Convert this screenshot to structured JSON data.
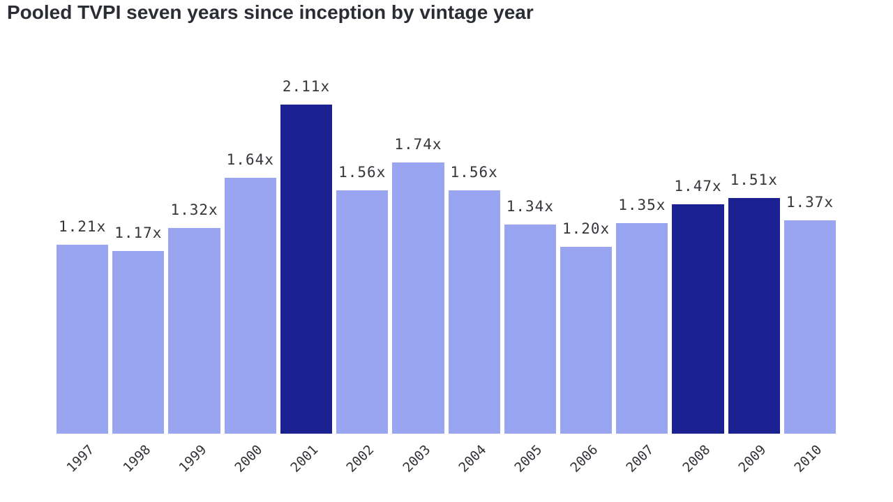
{
  "title": "Pooled TVPI seven years since inception by vintage year",
  "colors": {
    "background": "#ffffff",
    "bar": "#99a5f0",
    "bar_highlight": "#1c2192",
    "title_text": "#2a2d34",
    "label_text": "#33363b",
    "tick_text": "#303338"
  },
  "chart_data": {
    "type": "bar",
    "title": "Pooled TVPI seven years since inception by vintage year",
    "xlabel": "",
    "ylabel": "",
    "ylim": [
      0,
      2.11
    ],
    "grid": false,
    "legend": false,
    "x_tick_rotation_deg": 45,
    "categories": [
      "1997",
      "1998",
      "1999",
      "2000",
      "2001",
      "2002",
      "2003",
      "2004",
      "2005",
      "2006",
      "2007",
      "2008",
      "2009",
      "2010"
    ],
    "values": [
      1.21,
      1.17,
      1.32,
      1.64,
      2.11,
      1.56,
      1.74,
      1.56,
      1.34,
      1.2,
      1.35,
      1.47,
      1.51,
      1.37
    ],
    "value_labels": [
      "1.21x",
      "1.17x",
      "1.32x",
      "1.64x",
      "2.11x",
      "1.56x",
      "1.74x",
      "1.56x",
      "1.34x",
      "1.20x",
      "1.35x",
      "1.47x",
      "1.51x",
      "1.37x"
    ],
    "highlighted_categories": [
      "2001",
      "2008",
      "2009"
    ]
  }
}
